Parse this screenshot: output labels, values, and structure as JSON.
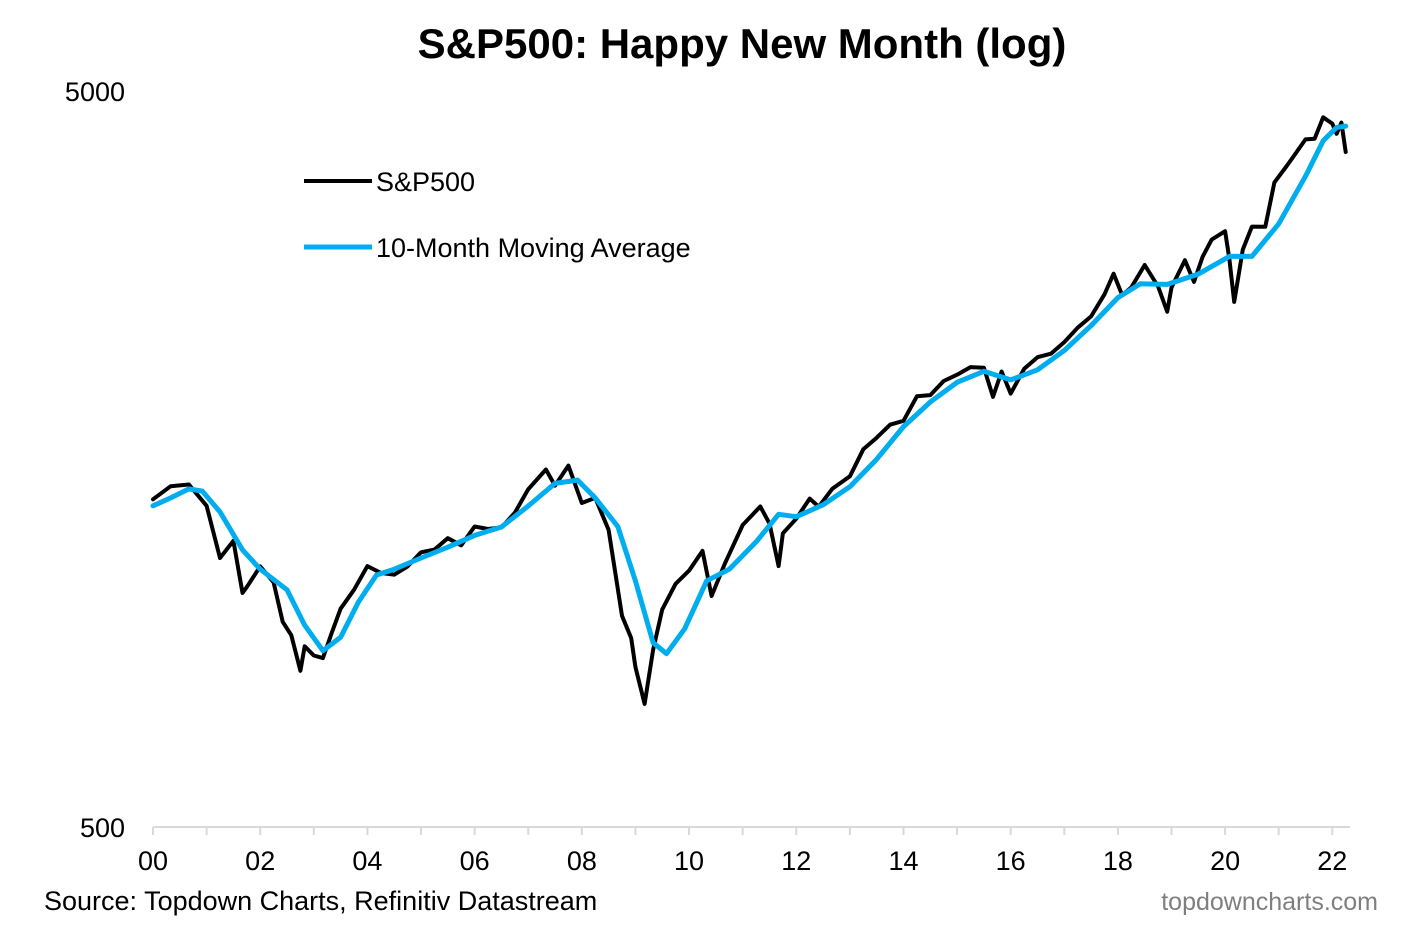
{
  "chart_data": {
    "type": "line",
    "title": "S&P500: Happy New Month (log)",
    "y_scale": "log",
    "ylim": [
      500,
      5000
    ],
    "y_ticks": [
      "5000",
      "500"
    ],
    "x_ticks": [
      "00",
      "02",
      "04",
      "06",
      "08",
      "10",
      "12",
      "14",
      "16",
      "18",
      "20",
      "22"
    ],
    "xlim": [
      2000.0,
      2022.33
    ],
    "legend_position": "top-left",
    "grid": false,
    "series": [
      {
        "name": "S&P500",
        "color": "#000000",
        "points": [
          [
            2000.0,
            1394
          ],
          [
            2000.33,
            1452
          ],
          [
            2000.67,
            1460
          ],
          [
            2000.75,
            1436
          ],
          [
            2001.0,
            1366
          ],
          [
            2001.25,
            1160
          ],
          [
            2001.5,
            1224
          ],
          [
            2001.67,
            1040
          ],
          [
            2001.75,
            1059
          ],
          [
            2002.0,
            1130
          ],
          [
            2002.25,
            1075
          ],
          [
            2002.42,
            950
          ],
          [
            2002.58,
            911
          ],
          [
            2002.75,
            815
          ],
          [
            2002.83,
            880
          ],
          [
            2003.0,
            855
          ],
          [
            2003.17,
            848
          ],
          [
            2003.33,
            916
          ],
          [
            2003.5,
            990
          ],
          [
            2003.75,
            1050
          ],
          [
            2004.0,
            1131
          ],
          [
            2004.25,
            1107
          ],
          [
            2004.5,
            1101
          ],
          [
            2004.75,
            1130
          ],
          [
            2005.0,
            1181
          ],
          [
            2005.25,
            1191
          ],
          [
            2005.5,
            1234
          ],
          [
            2005.75,
            1207
          ],
          [
            2006.0,
            1280
          ],
          [
            2006.25,
            1270
          ],
          [
            2006.5,
            1276
          ],
          [
            2006.75,
            1336
          ],
          [
            2007.0,
            1438
          ],
          [
            2007.33,
            1530
          ],
          [
            2007.5,
            1455
          ],
          [
            2007.75,
            1549
          ],
          [
            2008.0,
            1378
          ],
          [
            2008.25,
            1400
          ],
          [
            2008.5,
            1267
          ],
          [
            2008.75,
            968
          ],
          [
            2008.92,
            903
          ],
          [
            2009.0,
            825
          ],
          [
            2009.17,
            735
          ],
          [
            2009.33,
            870
          ],
          [
            2009.5,
            987
          ],
          [
            2009.75,
            1070
          ],
          [
            2010.0,
            1115
          ],
          [
            2010.25,
            1186
          ],
          [
            2010.42,
            1030
          ],
          [
            2010.67,
            1141
          ],
          [
            2011.0,
            1286
          ],
          [
            2011.33,
            1363
          ],
          [
            2011.5,
            1292
          ],
          [
            2011.67,
            1131
          ],
          [
            2011.75,
            1253
          ],
          [
            2012.0,
            1312
          ],
          [
            2012.25,
            1397
          ],
          [
            2012.42,
            1362
          ],
          [
            2012.67,
            1440
          ],
          [
            2013.0,
            1498
          ],
          [
            2013.25,
            1630
          ],
          [
            2013.5,
            1690
          ],
          [
            2013.75,
            1760
          ],
          [
            2014.0,
            1782
          ],
          [
            2014.25,
            1924
          ],
          [
            2014.5,
            1931
          ],
          [
            2014.75,
            2018
          ],
          [
            2015.0,
            2058
          ],
          [
            2015.25,
            2108
          ],
          [
            2015.5,
            2104
          ],
          [
            2015.67,
            1920
          ],
          [
            2015.83,
            2079
          ],
          [
            2016.0,
            1940
          ],
          [
            2016.25,
            2096
          ],
          [
            2016.5,
            2174
          ],
          [
            2016.75,
            2198
          ],
          [
            2017.0,
            2279
          ],
          [
            2017.25,
            2384
          ],
          [
            2017.5,
            2470
          ],
          [
            2017.75,
            2647
          ],
          [
            2017.92,
            2823
          ],
          [
            2018.08,
            2640
          ],
          [
            2018.25,
            2705
          ],
          [
            2018.5,
            2901
          ],
          [
            2018.75,
            2712
          ],
          [
            2018.92,
            2507
          ],
          [
            2019.0,
            2704
          ],
          [
            2019.25,
            2945
          ],
          [
            2019.42,
            2752
          ],
          [
            2019.58,
            2976
          ],
          [
            2019.75,
            3141
          ],
          [
            2020.0,
            3225
          ],
          [
            2020.08,
            2954
          ],
          [
            2020.17,
            2585
          ],
          [
            2020.33,
            3044
          ],
          [
            2020.5,
            3271
          ],
          [
            2020.75,
            3270
          ],
          [
            2020.92,
            3756
          ],
          [
            2021.17,
            3973
          ],
          [
            2021.5,
            4298
          ],
          [
            2021.67,
            4307
          ],
          [
            2021.83,
            4605
          ],
          [
            2022.0,
            4515
          ],
          [
            2022.08,
            4374
          ],
          [
            2022.17,
            4530
          ],
          [
            2022.25,
            4132
          ]
        ]
      },
      {
        "name": "10-Month Moving Average",
        "color": "#00AEEF",
        "points": [
          [
            2000.0,
            1366
          ],
          [
            2000.33,
            1400
          ],
          [
            2000.67,
            1440
          ],
          [
            2000.92,
            1430
          ],
          [
            2001.25,
            1340
          ],
          [
            2001.67,
            1190
          ],
          [
            2002.0,
            1120
          ],
          [
            2002.5,
            1050
          ],
          [
            2002.83,
            940
          ],
          [
            2003.17,
            868
          ],
          [
            2003.5,
            905
          ],
          [
            2003.83,
            1010
          ],
          [
            2004.17,
            1100
          ],
          [
            2004.5,
            1120
          ],
          [
            2005.0,
            1160
          ],
          [
            2005.5,
            1200
          ],
          [
            2006.0,
            1245
          ],
          [
            2006.5,
            1278
          ],
          [
            2007.0,
            1365
          ],
          [
            2007.5,
            1465
          ],
          [
            2007.92,
            1480
          ],
          [
            2008.25,
            1400
          ],
          [
            2008.67,
            1280
          ],
          [
            2009.0,
            1080
          ],
          [
            2009.33,
            890
          ],
          [
            2009.58,
            860
          ],
          [
            2009.92,
            930
          ],
          [
            2010.33,
            1080
          ],
          [
            2010.75,
            1120
          ],
          [
            2011.25,
            1220
          ],
          [
            2011.67,
            1330
          ],
          [
            2012.0,
            1320
          ],
          [
            2012.5,
            1370
          ],
          [
            2013.0,
            1450
          ],
          [
            2013.5,
            1580
          ],
          [
            2014.0,
            1750
          ],
          [
            2014.5,
            1890
          ],
          [
            2015.0,
            2010
          ],
          [
            2015.5,
            2080
          ],
          [
            2016.0,
            2025
          ],
          [
            2016.5,
            2090
          ],
          [
            2017.0,
            2220
          ],
          [
            2017.5,
            2400
          ],
          [
            2018.0,
            2620
          ],
          [
            2018.42,
            2735
          ],
          [
            2018.92,
            2730
          ],
          [
            2019.5,
            2820
          ],
          [
            2020.08,
            2980
          ],
          [
            2020.5,
            2980
          ],
          [
            2021.0,
            3300
          ],
          [
            2021.5,
            3830
          ],
          [
            2021.83,
            4280
          ],
          [
            2022.08,
            4460
          ],
          [
            2022.25,
            4480
          ]
        ]
      }
    ]
  },
  "footer": {
    "source": "Source: Topdown Charts, Refinitiv Datastream",
    "brand": "topdowncharts.com"
  }
}
